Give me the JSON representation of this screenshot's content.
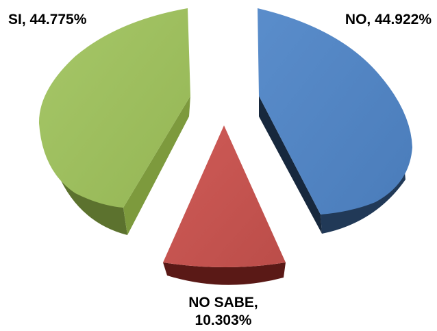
{
  "chart_data": {
    "type": "pie",
    "title": "",
    "style": "3d-exploded",
    "legend": "none",
    "slices": [
      {
        "label": "NO",
        "value": 44.922,
        "display": "NO, 44.922%",
        "color": "#4F81BD"
      },
      {
        "label": "NO SABE",
        "value": 10.303,
        "display_line1": "NO SABE,",
        "display_line2": "10.303%",
        "color": "#C0504D"
      },
      {
        "label": "SI",
        "value": 44.775,
        "display": "SI, 44.775%",
        "color": "#9BBB59"
      }
    ]
  }
}
